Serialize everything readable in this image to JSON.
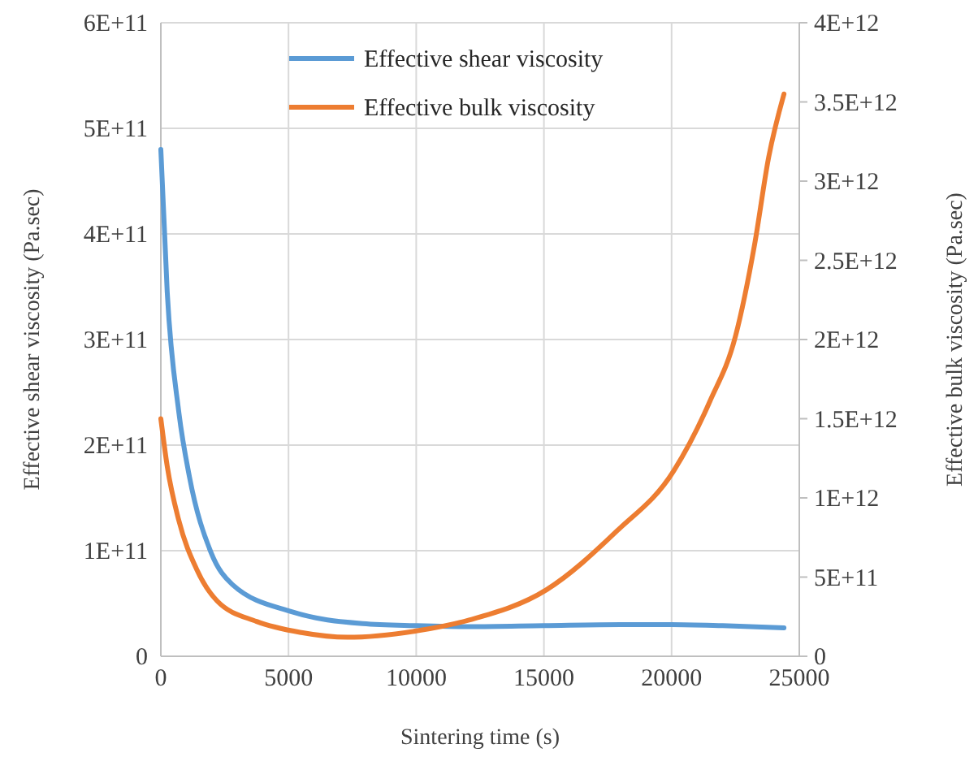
{
  "chart_data": {
    "type": "line",
    "xlabel": "Sintering time (s)",
    "ylabel": "Effective shear viscosity (Pa.sec)",
    "y2label": "Effective bulk viscosity (Pa.sec)",
    "xlim": [
      0,
      25000
    ],
    "xticks": [
      0,
      5000,
      10000,
      15000,
      20000,
      25000
    ],
    "ylim": [
      0,
      600000000000.0
    ],
    "yticks": [
      {
        "value": 0,
        "label": "0"
      },
      {
        "value": 100000000000.0,
        "label": "1E+11"
      },
      {
        "value": 200000000000.0,
        "label": "2E+11"
      },
      {
        "value": 300000000000.0,
        "label": "3E+11"
      },
      {
        "value": 400000000000.0,
        "label": "4E+11"
      },
      {
        "value": 500000000000.0,
        "label": "5E+11"
      },
      {
        "value": 600000000000.0,
        "label": "6E+11"
      }
    ],
    "y2lim": [
      0,
      4000000000000.0
    ],
    "y2ticks": [
      {
        "value": 0,
        "label": "0"
      },
      {
        "value": 500000000000.0,
        "label": "5E+11"
      },
      {
        "value": 1000000000000.0,
        "label": "1E+12"
      },
      {
        "value": 1500000000000.0,
        "label": "1.5E+12"
      },
      {
        "value": 2000000000000.0,
        "label": "2E+12"
      },
      {
        "value": 2500000000000.0,
        "label": "2.5E+12"
      },
      {
        "value": 3000000000000.0,
        "label": "3E+12"
      },
      {
        "value": 3500000000000.0,
        "label": "3.5E+12"
      },
      {
        "value": 4000000000000.0,
        "label": "4E+12"
      }
    ],
    "grid": true,
    "legend": "top",
    "marker": "none",
    "line_style": "solid",
    "series": [
      {
        "name": "Effective shear viscosity",
        "color": "#5b9bd5",
        "x": [
          0,
          250,
          700,
          1120,
          1970,
          2800,
          5150,
          7900,
          10000,
          12100,
          15000,
          18000,
          20000,
          22000,
          24400
        ],
        "values": [
          480000000000.0,
          345000000000.0,
          232000000000.0,
          170000000000.0,
          98000000000.0,
          68000000000.0,
          42000000000.0,
          31000000000.0,
          29000000000.0,
          28000000000.0,
          29000000000.0,
          30000000000.0,
          30000000000.0,
          29000000000.0,
          27000000000.0
        ]
      },
      {
        "name": "Effective bulk viscosity",
        "color": "#ed7d31",
        "axis": "y2",
        "x": [
          0,
          250,
          700,
          1400,
          2200,
          3750,
          5500,
          7300,
          10000,
          12100,
          15100,
          17850,
          20080,
          21500,
          22500,
          23250,
          23800,
          24400
        ],
        "values": [
          1500000000000.0,
          1200000000000.0,
          860000000000.0,
          550000000000.0,
          350000000000.0,
          220000000000.0,
          150000000000.0,
          120000000000.0,
          160000000000.0,
          230000000000.0,
          420000000000.0,
          790000000000.0,
          1170000000000.0,
          1610000000000.0,
          2020000000000.0,
          2600000000000.0,
          3150000000000.0,
          3550000000000.0
        ]
      }
    ]
  }
}
